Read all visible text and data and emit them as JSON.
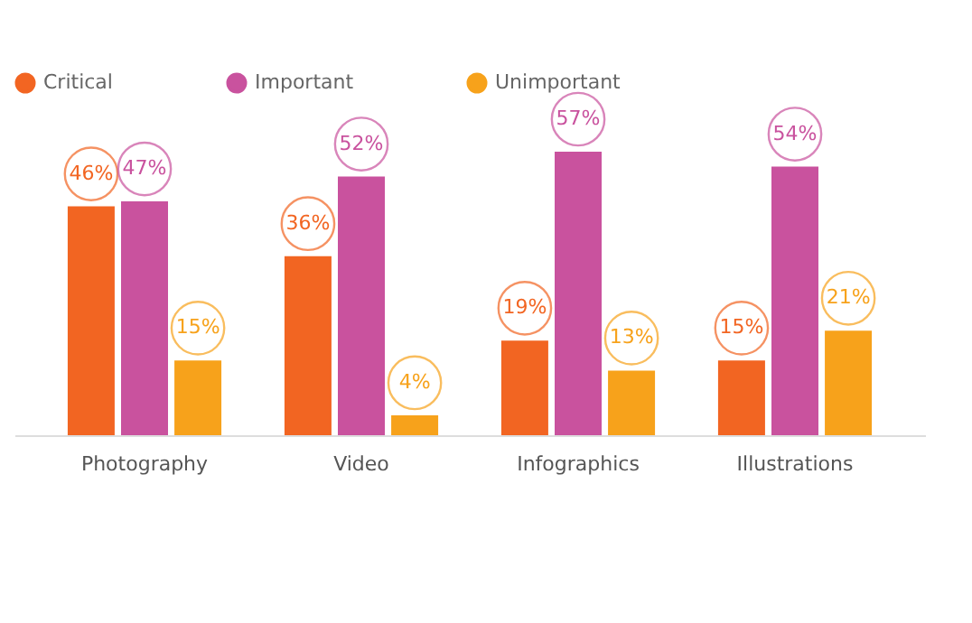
{
  "chart_data": {
    "type": "bar",
    "categories": [
      "Photography",
      "Video",
      "Infographics",
      "Illustrations"
    ],
    "series": [
      {
        "name": "Critical",
        "color": "#f26522",
        "values": [
          46,
          36,
          19,
          15
        ],
        "value_labels": [
          "46%",
          "36%",
          "19%",
          "15%"
        ]
      },
      {
        "name": "Important",
        "color": "#c9529e",
        "values": [
          47,
          52,
          57,
          54
        ],
        "value_labels": [
          "47%",
          "52%",
          "57%",
          "54%"
        ]
      },
      {
        "name": "Unimportant",
        "color": "#f7a21b",
        "values": [
          15,
          4,
          13,
          21
        ],
        "value_labels": [
          "15%",
          "4%",
          "13%",
          "21%"
        ]
      }
    ],
    "legend": "top",
    "grid": false,
    "tick_labels": "x"
  }
}
